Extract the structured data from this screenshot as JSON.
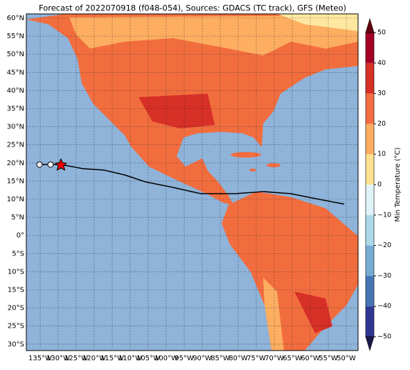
{
  "title": "Forecast of 2022070918 (f048-054), Sources: GDACS (TC track), GFS (Meteo)",
  "lat_labels": [
    "60°N",
    "55°N",
    "50°N",
    "45°N",
    "40°N",
    "35°N",
    "30°N",
    "25°N",
    "20°N",
    "15°N",
    "10°N",
    "5°N",
    "0°",
    "5°S",
    "10°S",
    "15°S",
    "20°S",
    "25°S",
    "30°S"
  ],
  "lon_labels": [
    "135°W",
    "130°W",
    "125°W",
    "120°W",
    "115°W",
    "110°W",
    "105°W",
    "100°W",
    "95°W",
    "90°W",
    "85°W",
    "80°W",
    "75°W",
    "70°W",
    "65°W",
    "60°W",
    "55°W",
    "50°W"
  ],
  "colorbar": {
    "label": "Min Temperature (°C)",
    "ticks": [
      {
        "value": 50,
        "label": "50"
      },
      {
        "value": 40,
        "label": "40"
      },
      {
        "value": 30,
        "label": "30"
      },
      {
        "value": 20,
        "label": "20"
      },
      {
        "value": 10,
        "label": "10"
      },
      {
        "value": 0,
        "label": "0"
      },
      {
        "value": -10,
        "label": "−10"
      },
      {
        "value": -20,
        "label": "−20"
      },
      {
        "value": -30,
        "label": "−30"
      },
      {
        "value": -40,
        "label": "−40"
      },
      {
        "value": -50,
        "label": "−50"
      }
    ],
    "colors": [
      "#313695",
      "#4575b4",
      "#74add1",
      "#abd9e9",
      "#e0f3f8",
      "#fee090",
      "#fdae61",
      "#f46d43",
      "#d73027",
      "#a50026"
    ]
  }
}
